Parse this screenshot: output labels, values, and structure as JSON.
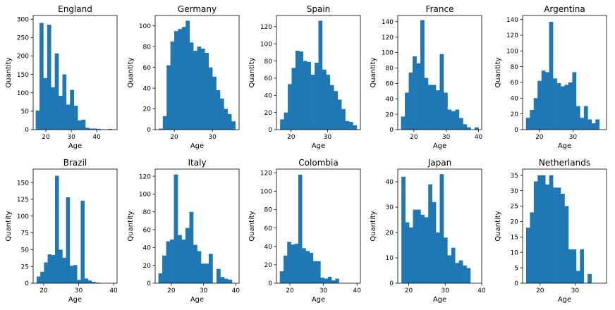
{
  "chart_data": [
    {
      "type": "bar",
      "title": "England",
      "xlabel": "Age",
      "ylabel": "Quantity",
      "x_start": 16,
      "bin_width": 1.5,
      "values": [
        52,
        290,
        140,
        285,
        115,
        207,
        92,
        150,
        68,
        108,
        65,
        25,
        27,
        5,
        3,
        3,
        2,
        1,
        0,
        2
      ],
      "xlim": [
        15,
        48
      ],
      "ylim": [
        0,
        310
      ],
      "xticks": [
        20,
        30,
        40
      ],
      "yticks": [
        0,
        50,
        100,
        150,
        200,
        250,
        300
      ]
    },
    {
      "type": "bar",
      "title": "Germany",
      "xlabel": "Age",
      "ylabel": "Quantity",
      "x_start": 16,
      "bin_width": 1,
      "values": [
        1,
        13,
        62,
        85,
        95,
        97,
        99,
        105,
        84,
        76,
        80,
        78,
        74,
        60,
        51,
        38,
        30,
        20,
        15,
        8
      ],
      "xlim": [
        15,
        37
      ],
      "ylim": [
        0,
        110
      ],
      "xticks": [
        20,
        30
      ],
      "yticks": [
        0,
        20,
        40,
        60,
        80,
        100
      ]
    },
    {
      "type": "bar",
      "title": "Spain",
      "xlabel": "Age",
      "ylabel": "Quantity",
      "x_start": 17,
      "bin_width": 1.05,
      "values": [
        12,
        20,
        53,
        72,
        92,
        91,
        80,
        79,
        64,
        78,
        127,
        70,
        64,
        52,
        45,
        35,
        24,
        10,
        9,
        5
      ],
      "xlim": [
        16,
        39
      ],
      "ylim": [
        0,
        133
      ],
      "xticks": [
        20,
        30
      ],
      "yticks": [
        0,
        20,
        40,
        60,
        80,
        100,
        120
      ]
    },
    {
      "type": "bar",
      "title": "France",
      "xlabel": "Age",
      "ylabel": "Quantity",
      "x_start": 16,
      "bin_width": 1.2,
      "values": [
        17,
        48,
        74,
        95,
        86,
        142,
        67,
        58,
        58,
        51,
        98,
        48,
        26,
        24,
        26,
        15,
        7,
        3,
        0,
        3
      ],
      "xlim": [
        15,
        41
      ],
      "ylim": [
        0,
        148
      ],
      "xticks": [
        20,
        30,
        40
      ],
      "yticks": [
        0,
        20,
        40,
        60,
        80,
        100,
        120,
        140
      ]
    },
    {
      "type": "bar",
      "title": "Argentina",
      "xlabel": "Age",
      "ylabel": "Quantity",
      "x_start": 16,
      "bin_width": 1.15,
      "values": [
        15,
        25,
        40,
        62,
        75,
        73,
        137,
        65,
        59,
        55,
        57,
        60,
        73,
        30,
        15,
        30,
        13,
        8,
        13,
        0
      ],
      "xlim": [
        15,
        40
      ],
      "ylim": [
        0,
        145
      ],
      "xticks": [
        20,
        30
      ],
      "yticks": [
        0,
        20,
        40,
        60,
        80,
        100,
        120,
        140
      ]
    },
    {
      "type": "bar",
      "title": "Brazil",
      "xlabel": "Age",
      "ylabel": "Quantity",
      "x_start": 18,
      "bin_width": 1.05,
      "values": [
        10,
        17,
        31,
        43,
        42,
        160,
        50,
        38,
        128,
        26,
        27,
        5,
        123,
        7,
        4,
        2,
        1,
        0,
        0,
        0
      ],
      "xlim": [
        17,
        41
      ],
      "ylim": [
        0,
        170
      ],
      "xticks": [
        20,
        30,
        40
      ],
      "yticks": [
        0,
        25,
        50,
        75,
        100,
        125,
        150
      ]
    },
    {
      "type": "bar",
      "title": "Italy",
      "xlabel": "Age",
      "ylabel": "Quantity",
      "x_start": 16,
      "bin_width": 1.2,
      "values": [
        11,
        31,
        47,
        49,
        122,
        54,
        49,
        62,
        80,
        43,
        36,
        22,
        22,
        33,
        0,
        16,
        7,
        5,
        4,
        0
      ],
      "xlim": [
        15,
        41
      ],
      "ylim": [
        0,
        128
      ],
      "xticks": [
        20,
        30,
        40
      ],
      "yticks": [
        0,
        20,
        40,
        60,
        80,
        100,
        120
      ]
    },
    {
      "type": "bar",
      "title": "Colombia",
      "xlabel": "Age",
      "ylabel": "Quantity",
      "x_start": 17,
      "bin_width": 1.1,
      "values": [
        13,
        30,
        45,
        42,
        43,
        118,
        38,
        35,
        33,
        24,
        24,
        6,
        5,
        7,
        3,
        5,
        0,
        0,
        0,
        0
      ],
      "xlim": [
        16,
        41
      ],
      "ylim": [
        0,
        124
      ],
      "xticks": [
        20,
        30,
        40
      ],
      "yticks": [
        0,
        20,
        40,
        60,
        80,
        100,
        120
      ]
    },
    {
      "type": "bar",
      "title": "Japan",
      "xlabel": "Age",
      "ylabel": "Quantity",
      "x_start": 18,
      "bin_width": 1.05,
      "values": [
        42,
        24,
        22,
        29,
        29,
        27,
        26,
        39,
        32,
        20,
        43,
        18,
        11,
        14,
        8,
        9,
        7,
        6,
        0,
        0
      ],
      "xlim": [
        17,
        40
      ],
      "ylim": [
        0,
        45
      ],
      "xticks": [
        20,
        30,
        40
      ],
      "yticks": [
        0,
        10,
        20,
        30,
        40
      ]
    },
    {
      "type": "bar",
      "title": "Netherlands",
      "xlabel": "Age",
      "ylabel": "Quantity",
      "x_start": 16,
      "bin_width": 1.1,
      "values": [
        18,
        23,
        33,
        35,
        35,
        32,
        35,
        31,
        31,
        29,
        25,
        11,
        11,
        4,
        11,
        0,
        3,
        0,
        0,
        0
      ],
      "xlim": [
        15,
        39
      ],
      "ylim": [
        0,
        37
      ],
      "xticks": [
        20,
        30
      ],
      "yticks": [
        0,
        5,
        10,
        15,
        20,
        25,
        30,
        35
      ]
    }
  ],
  "colors": {
    "bar": "#1f77b4",
    "axis": "#000000"
  }
}
